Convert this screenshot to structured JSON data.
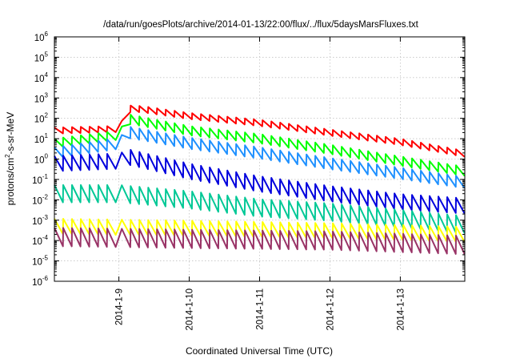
{
  "chart_data": {
    "type": "line",
    "title": "/data/run/goesPlots/archive/2014-01-13/22:00/flux/../flux/5daysMarsFluxes.txt",
    "xlabel": "Coordinated Universal Time (UTC)",
    "ylabel": {
      "prefix": "protons/cm",
      "sup": "2",
      "suffix": "-s-sr-MeV"
    },
    "yscale": "log",
    "ylim": [
      1e-06,
      1000000.0
    ],
    "y_ticks": [
      {
        "base": "10",
        "exp": "-6"
      },
      {
        "base": "10",
        "exp": "-5"
      },
      {
        "base": "10",
        "exp": "-4"
      },
      {
        "base": "10",
        "exp": "-3"
      },
      {
        "base": "10",
        "exp": "-2"
      },
      {
        "base": "10",
        "exp": "-1"
      },
      {
        "base": "10",
        "exp": "0"
      },
      {
        "base": "10",
        "exp": "1"
      },
      {
        "base": "10",
        "exp": "2"
      },
      {
        "base": "10",
        "exp": "3"
      },
      {
        "base": "10",
        "exp": "4"
      },
      {
        "base": "10",
        "exp": "5"
      },
      {
        "base": "10",
        "exp": "6"
      }
    ],
    "xlim": [
      "2014-01-08 02:00",
      "2014-01-13 22:00"
    ],
    "x_ticks": [
      "2014-1-9",
      "2014-1-10",
      "2014-1-11",
      "2014-1-12",
      "2014-1-13"
    ],
    "grid": true,
    "legend": "none",
    "sawtooth_period_hours": 3,
    "event_start": "2014-01-09 01:00",
    "series": [
      {
        "color": "#ff0000",
        "amplitude": 0.3,
        "points": [
          [
            "2014-01-08 02:00",
            25
          ],
          [
            "2014-01-09 00:00",
            30
          ],
          [
            "2014-01-09 04:00",
            300
          ],
          [
            "2014-01-09 08:00",
            280
          ],
          [
            "2014-01-10 00:00",
            130
          ],
          [
            "2014-01-11 00:00",
            60
          ],
          [
            "2014-01-12 00:00",
            20
          ],
          [
            "2014-01-13 00:00",
            7
          ],
          [
            "2014-01-13 22:00",
            1.8
          ]
        ]
      },
      {
        "color": "#00ff00",
        "amplitude": 0.45,
        "points": [
          [
            "2014-01-08 02:00",
            6
          ],
          [
            "2014-01-09 00:00",
            15
          ],
          [
            "2014-01-09 04:00",
            90
          ],
          [
            "2014-01-10 00:00",
            25
          ],
          [
            "2014-01-11 00:00",
            10
          ],
          [
            "2014-01-12 00:00",
            3
          ],
          [
            "2014-01-13 00:00",
            0.8
          ],
          [
            "2014-01-13 22:00",
            0.25
          ]
        ]
      },
      {
        "color": "#1e90ff",
        "amplitude": 0.55,
        "points": [
          [
            "2014-01-08 02:00",
            2
          ],
          [
            "2014-01-09 00:00",
            6
          ],
          [
            "2014-01-09 04:00",
            20
          ],
          [
            "2014-01-10 00:00",
            6
          ],
          [
            "2014-01-11 00:00",
            2
          ],
          [
            "2014-01-12 00:00",
            0.6
          ],
          [
            "2014-01-13 00:00",
            0.2
          ],
          [
            "2014-01-13 22:00",
            0.07
          ]
        ]
      },
      {
        "color": "#0000dd",
        "amplitude": 0.75,
        "points": [
          [
            "2014-01-08 02:00",
            0.6
          ],
          [
            "2014-01-09 00:00",
            0.8
          ],
          [
            "2014-01-09 04:00",
            1.2
          ],
          [
            "2014-01-10 00:00",
            0.25
          ],
          [
            "2014-01-11 00:00",
            0.06
          ],
          [
            "2014-01-12 00:00",
            0.02
          ],
          [
            "2014-01-13 00:00",
            0.008
          ],
          [
            "2014-01-13 22:00",
            0.005
          ]
        ]
      },
      {
        "color": "#00c896",
        "amplitude": 0.85,
        "points": [
          [
            "2014-01-08 02:00",
            0.02
          ],
          [
            "2014-01-09 00:00",
            0.02
          ],
          [
            "2014-01-10 00:00",
            0.01
          ],
          [
            "2014-01-11 00:00",
            0.004
          ],
          [
            "2014-01-12 00:00",
            0.0025
          ],
          [
            "2014-01-13 00:00",
            0.0012
          ],
          [
            "2014-01-13 22:00",
            0.0006
          ]
        ]
      },
      {
        "color": "#ffff00",
        "amplitude": 0.75,
        "points": [
          [
            "2014-01-08 02:00",
            0.0005
          ],
          [
            "2014-01-10 00:00",
            0.0004
          ],
          [
            "2014-01-12 00:00",
            0.0003
          ],
          [
            "2014-01-13 22:00",
            0.0002
          ]
        ]
      },
      {
        "color": "#993366",
        "amplitude": 0.9,
        "points": [
          [
            "2014-01-08 02:00",
            0.00015
          ],
          [
            "2014-01-10 00:00",
            0.00012
          ],
          [
            "2014-01-12 00:00",
            0.0001
          ],
          [
            "2014-01-13 22:00",
            6e-05
          ]
        ]
      }
    ]
  }
}
